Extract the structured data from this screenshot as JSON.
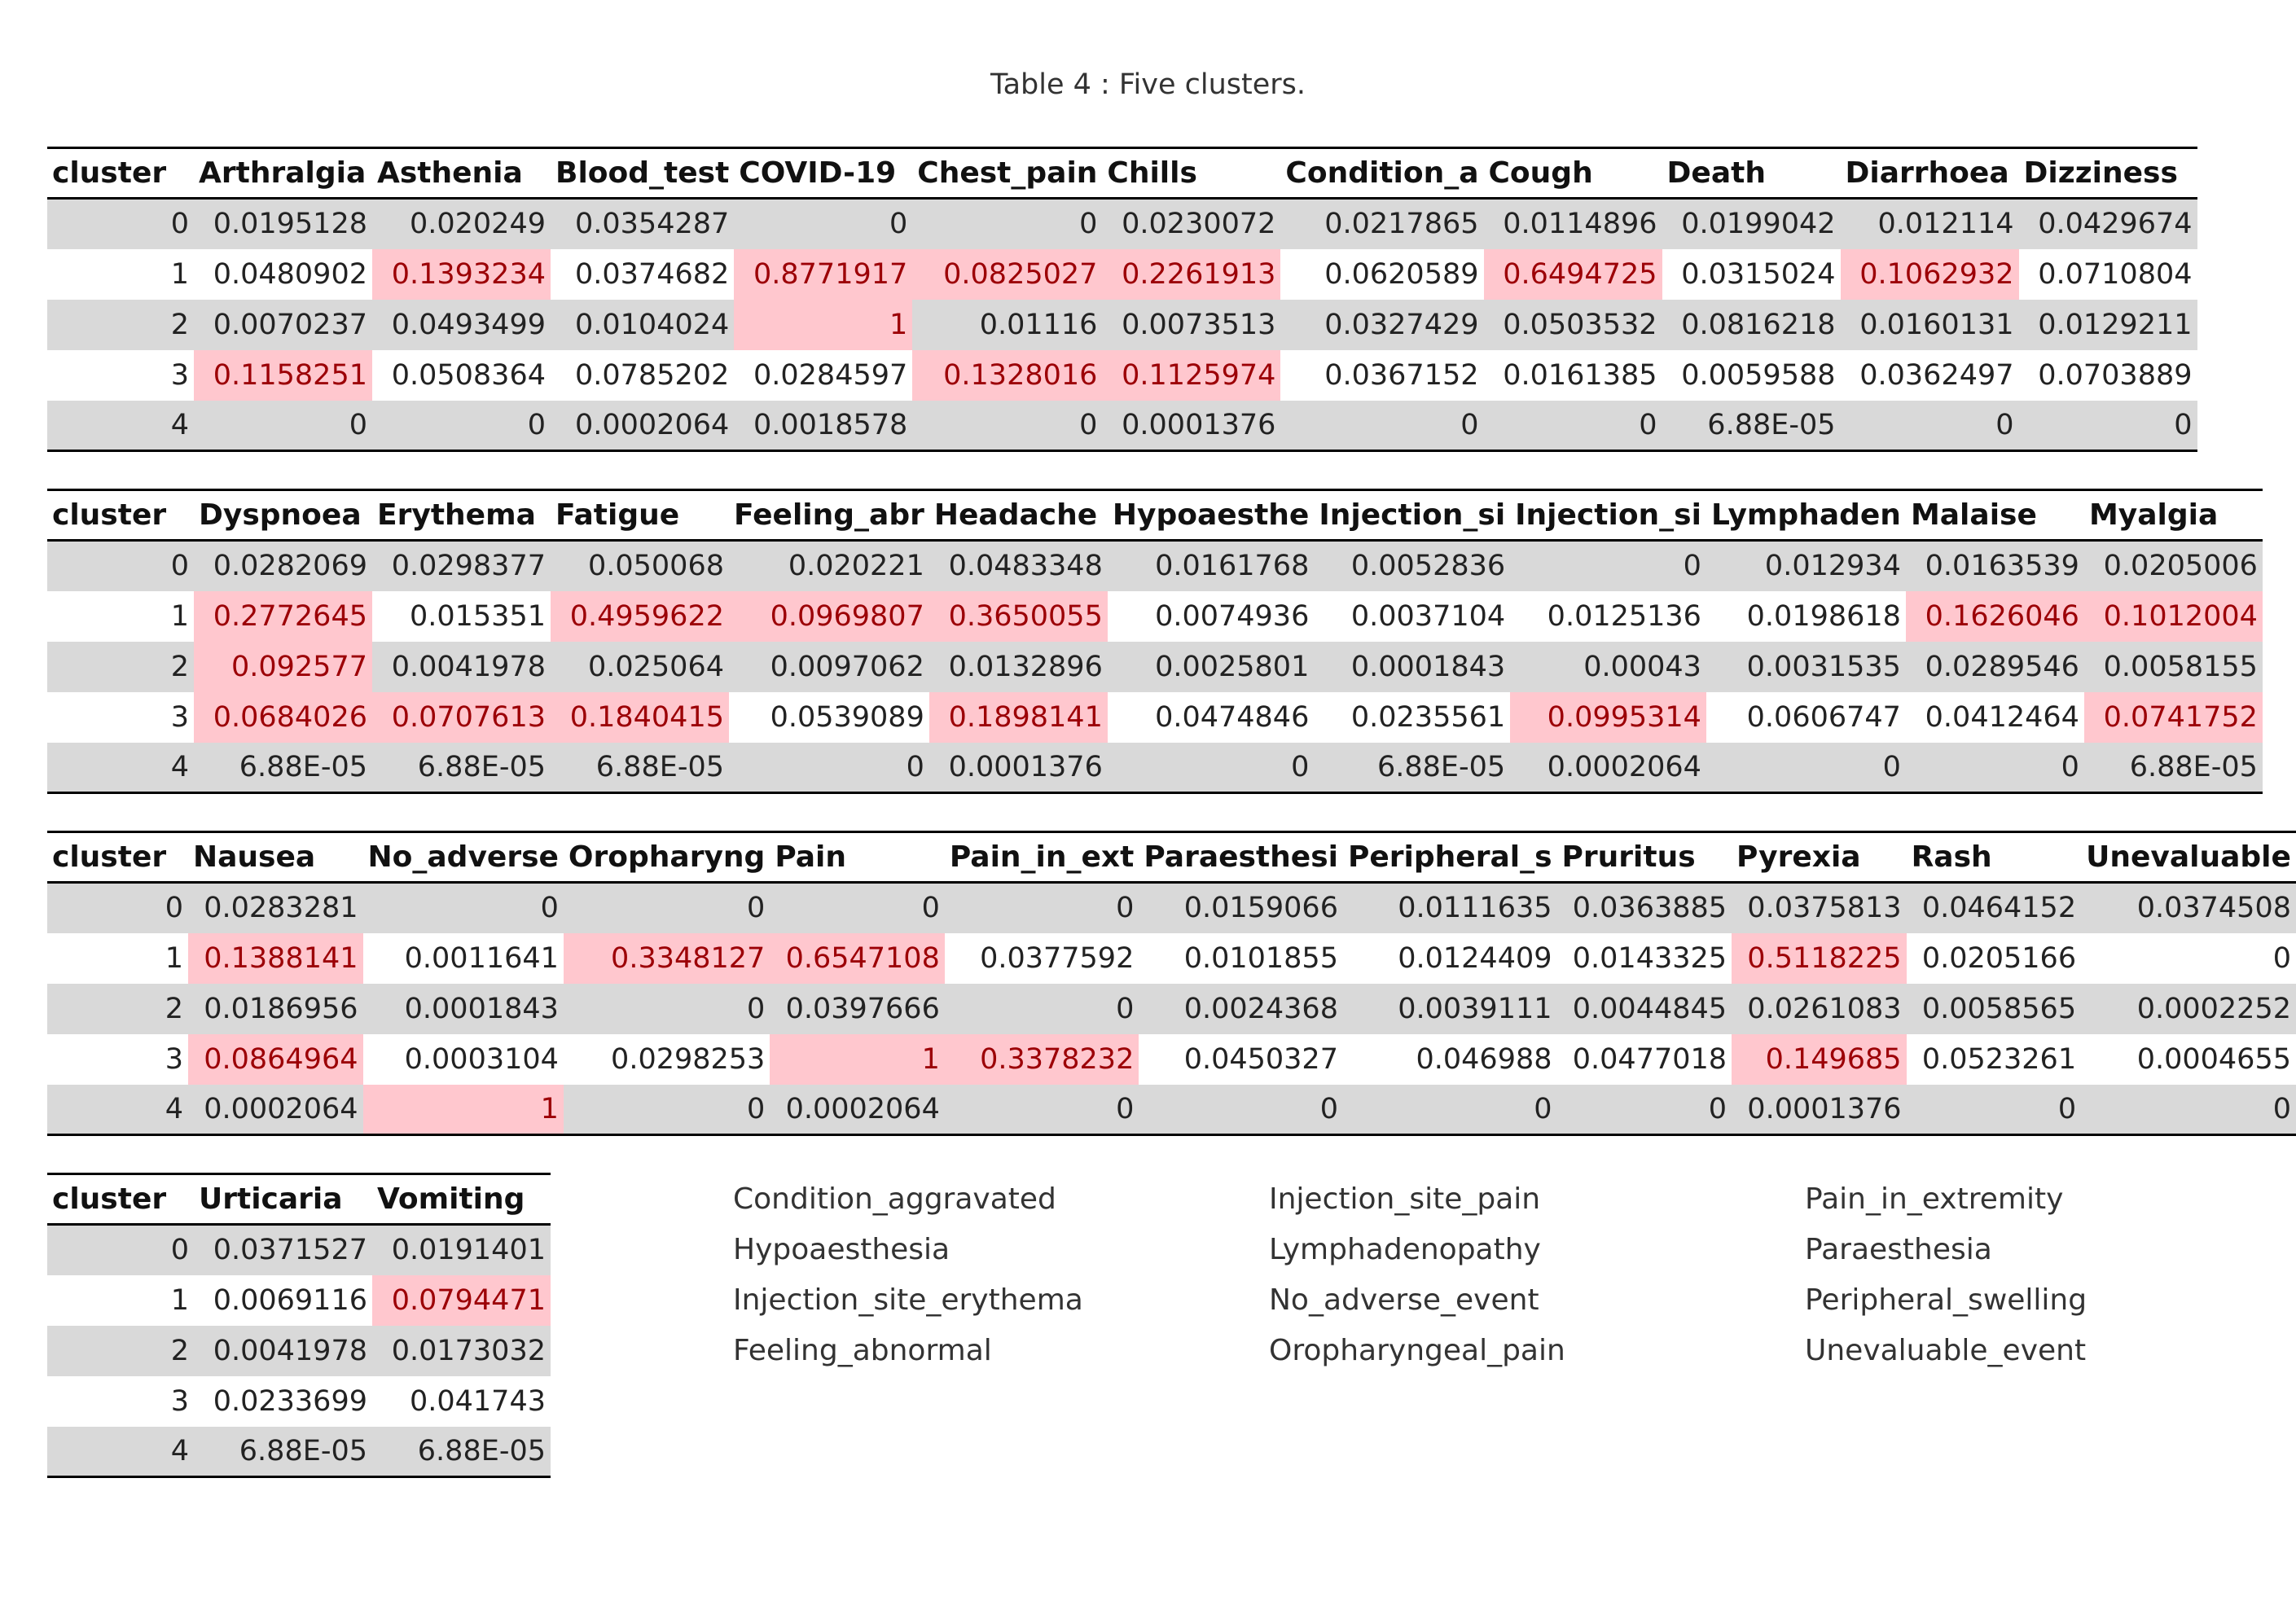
{
  "caption": "Table 4 : Five clusters.",
  "tables": [
    {
      "headers": [
        "cluster",
        "Arthralgia",
        "Asthenia",
        "Blood_test",
        "COVID-19",
        "Chest_pain",
        "Chills",
        "Condition_a",
        "Cough",
        "Death",
        "Diarrhoea",
        "Dizziness"
      ],
      "rows": [
        [
          "0",
          "0.0195128",
          "0.020249",
          "0.0354287",
          "0",
          "0",
          "0.0230072",
          "0.0217865",
          "0.0114896",
          "0.0199042",
          "0.012114",
          "0.0429674"
        ],
        [
          "1",
          "0.0480902",
          "0.1393234",
          "0.0374682",
          "0.8771917",
          "0.0825027",
          "0.2261913",
          "0.0620589",
          "0.6494725",
          "0.0315024",
          "0.1062932",
          "0.0710804"
        ],
        [
          "2",
          "0.0070237",
          "0.0493499",
          "0.0104024",
          "1",
          "0.01116",
          "0.0073513",
          "0.0327429",
          "0.0503532",
          "0.0816218",
          "0.0160131",
          "0.0129211"
        ],
        [
          "3",
          "0.1158251",
          "0.0508364",
          "0.0785202",
          "0.0284597",
          "0.1328016",
          "0.1125974",
          "0.0367152",
          "0.0161385",
          "0.0059588",
          "0.0362497",
          "0.0703889"
        ],
        [
          "4",
          "0",
          "0",
          "0.0002064",
          "0.0018578",
          "0",
          "0.0001376",
          "0",
          "0",
          "6.88E-05",
          "0",
          "0"
        ]
      ],
      "highlights": [
        [
          1,
          2
        ],
        [
          1,
          4
        ],
        [
          1,
          5
        ],
        [
          1,
          6
        ],
        [
          1,
          8
        ],
        [
          1,
          10
        ],
        [
          2,
          4
        ],
        [
          3,
          1
        ],
        [
          3,
          5
        ],
        [
          3,
          6
        ]
      ]
    },
    {
      "headers": [
        "cluster",
        "Dyspnoea",
        "Erythema",
        "Fatigue",
        "Feeling_abr",
        "Headache",
        "Hypoaesthe",
        "Injection_si",
        "Injection_si",
        "Lymphaden",
        "Malaise",
        "Myalgia"
      ],
      "rows": [
        [
          "0",
          "0.0282069",
          "0.0298377",
          "0.050068",
          "0.020221",
          "0.0483348",
          "0.0161768",
          "0.0052836",
          "0",
          "0.012934",
          "0.0163539",
          "0.0205006"
        ],
        [
          "1",
          "0.2772645",
          "0.015351",
          "0.4959622",
          "0.0969807",
          "0.3650055",
          "0.0074936",
          "0.0037104",
          "0.0125136",
          "0.0198618",
          "0.1626046",
          "0.1012004"
        ],
        [
          "2",
          "0.092577",
          "0.0041978",
          "0.025064",
          "0.0097062",
          "0.0132896",
          "0.0025801",
          "0.0001843",
          "0.00043",
          "0.0031535",
          "0.0289546",
          "0.0058155"
        ],
        [
          "3",
          "0.0684026",
          "0.0707613",
          "0.1840415",
          "0.0539089",
          "0.1898141",
          "0.0474846",
          "0.0235561",
          "0.0995314",
          "0.0606747",
          "0.0412464",
          "0.0741752"
        ],
        [
          "4",
          "6.88E-05",
          "6.88E-05",
          "6.88E-05",
          "0",
          "0.0001376",
          "0",
          "6.88E-05",
          "0.0002064",
          "0",
          "0",
          "6.88E-05"
        ]
      ],
      "highlights": [
        [
          1,
          1
        ],
        [
          1,
          3
        ],
        [
          1,
          4
        ],
        [
          1,
          5
        ],
        [
          1,
          10
        ],
        [
          1,
          11
        ],
        [
          2,
          1
        ],
        [
          3,
          1
        ],
        [
          3,
          2
        ],
        [
          3,
          3
        ],
        [
          3,
          5
        ],
        [
          3,
          8
        ],
        [
          3,
          11
        ]
      ]
    },
    {
      "headers": [
        "cluster",
        "Nausea",
        "No_adverse",
        "Oropharyng",
        "Pain",
        "Pain_in_ext",
        "Paraesthesi",
        "Peripheral_s",
        "Pruritus",
        "Pyrexia",
        "Rash",
        "Unevaluable"
      ],
      "rows": [
        [
          "0",
          "0.0283281",
          "0",
          "0",
          "0",
          "0",
          "0.0159066",
          "0.0111635",
          "0.0363885",
          "0.0375813",
          "0.0464152",
          "0.0374508"
        ],
        [
          "1",
          "0.1388141",
          "0.0011641",
          "0.3348127",
          "0.6547108",
          "0.0377592",
          "0.0101855",
          "0.0124409",
          "0.0143325",
          "0.5118225",
          "0.0205166",
          "0"
        ],
        [
          "2",
          "0.0186956",
          "0.0001843",
          "0",
          "0.0397666",
          "0",
          "0.0024368",
          "0.0039111",
          "0.0044845",
          "0.0261083",
          "0.0058565",
          "0.0002252"
        ],
        [
          "3",
          "0.0864964",
          "0.0003104",
          "0.0298253",
          "1",
          "0.3378232",
          "0.0450327",
          "0.046988",
          "0.0477018",
          "0.149685",
          "0.0523261",
          "0.0004655"
        ],
        [
          "4",
          "0.0002064",
          "1",
          "0",
          "0.0002064",
          "0",
          "0",
          "0",
          "0",
          "0.0001376",
          "0",
          "0"
        ]
      ],
      "highlights": [
        [
          1,
          1
        ],
        [
          1,
          3
        ],
        [
          1,
          4
        ],
        [
          1,
          9
        ],
        [
          3,
          1
        ],
        [
          3,
          4
        ],
        [
          3,
          5
        ],
        [
          3,
          9
        ],
        [
          4,
          2
        ]
      ]
    },
    {
      "headers": [
        "cluster",
        "Urticaria",
        "Vomiting"
      ],
      "rows": [
        [
          "0",
          "0.0371527",
          "0.0191401"
        ],
        [
          "1",
          "0.0069116",
          "0.0794471"
        ],
        [
          "2",
          "0.0041978",
          "0.0173032"
        ],
        [
          "3",
          "0.0233699",
          "0.041743"
        ],
        [
          "4",
          "6.88E-05",
          "6.88E-05"
        ]
      ],
      "highlights": [
        [
          1,
          2
        ]
      ]
    }
  ],
  "legend": [
    "Condition_aggravated",
    "Injection_site_pain",
    "Pain_in_extremity",
    "Hypoaesthesia",
    "Lymphadenopathy",
    "Paraesthesia",
    "Injection_site_erythema",
    "No_adverse_event",
    "Peripheral_swelling",
    "Feeling_abnormal",
    "Oropharyngeal_pain",
    "Unevaluable_event"
  ],
  "colors": {
    "highlight_bg": "#ffc7ce",
    "highlight_text": "#9c0006",
    "stripe": "#d9d9d9"
  }
}
